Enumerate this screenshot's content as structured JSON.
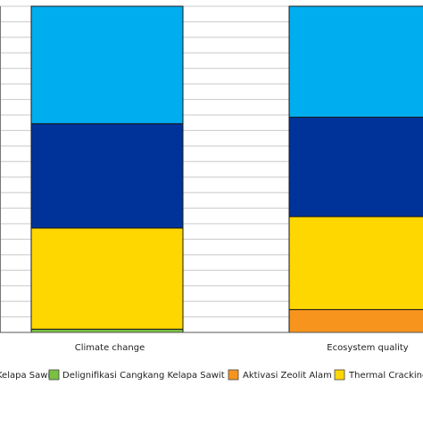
{
  "chart_data": {
    "type": "bar",
    "stacked": true,
    "normalized_percent": true,
    "categories": [
      "Climate change",
      "Ecosystem quality"
    ],
    "series": [
      {
        "name": "Delignifikasi Cangkang Kelapa Sawit",
        "color": "#7AC143",
        "values": [
          1.0,
          0.0
        ]
      },
      {
        "name": "Aktivasi Zeolit Alam",
        "color": "#F7941D",
        "values": [
          0.0,
          7.0
        ]
      },
      {
        "name": "Thermal Cracking",
        "color": "#FFD700",
        "values": [
          31.0,
          28.5
        ]
      },
      {
        "name": "",
        "color": "#003399",
        "values": [
          32.0,
          30.5
        ]
      },
      {
        "name": "",
        "color": "#00AEEF",
        "values": [
          36.0,
          34.0
        ]
      }
    ],
    "legend": {
      "position": "bottom",
      "entries": [
        {
          "label": "Kelapa Sawit",
          "color": ""
        },
        {
          "label": "Delignifikasi Cangkang Kelapa Sawit",
          "color": "#7AC143"
        },
        {
          "label": "Aktivasi Zeolit Alam",
          "color": "#F7941D"
        },
        {
          "label": "Thermal Cracking",
          "color": "#FFD700"
        }
      ]
    },
    "grid": true,
    "gridlines": 21,
    "ylim": [
      0,
      100
    ],
    "title": "",
    "xlabel": "",
    "ylabel": ""
  }
}
